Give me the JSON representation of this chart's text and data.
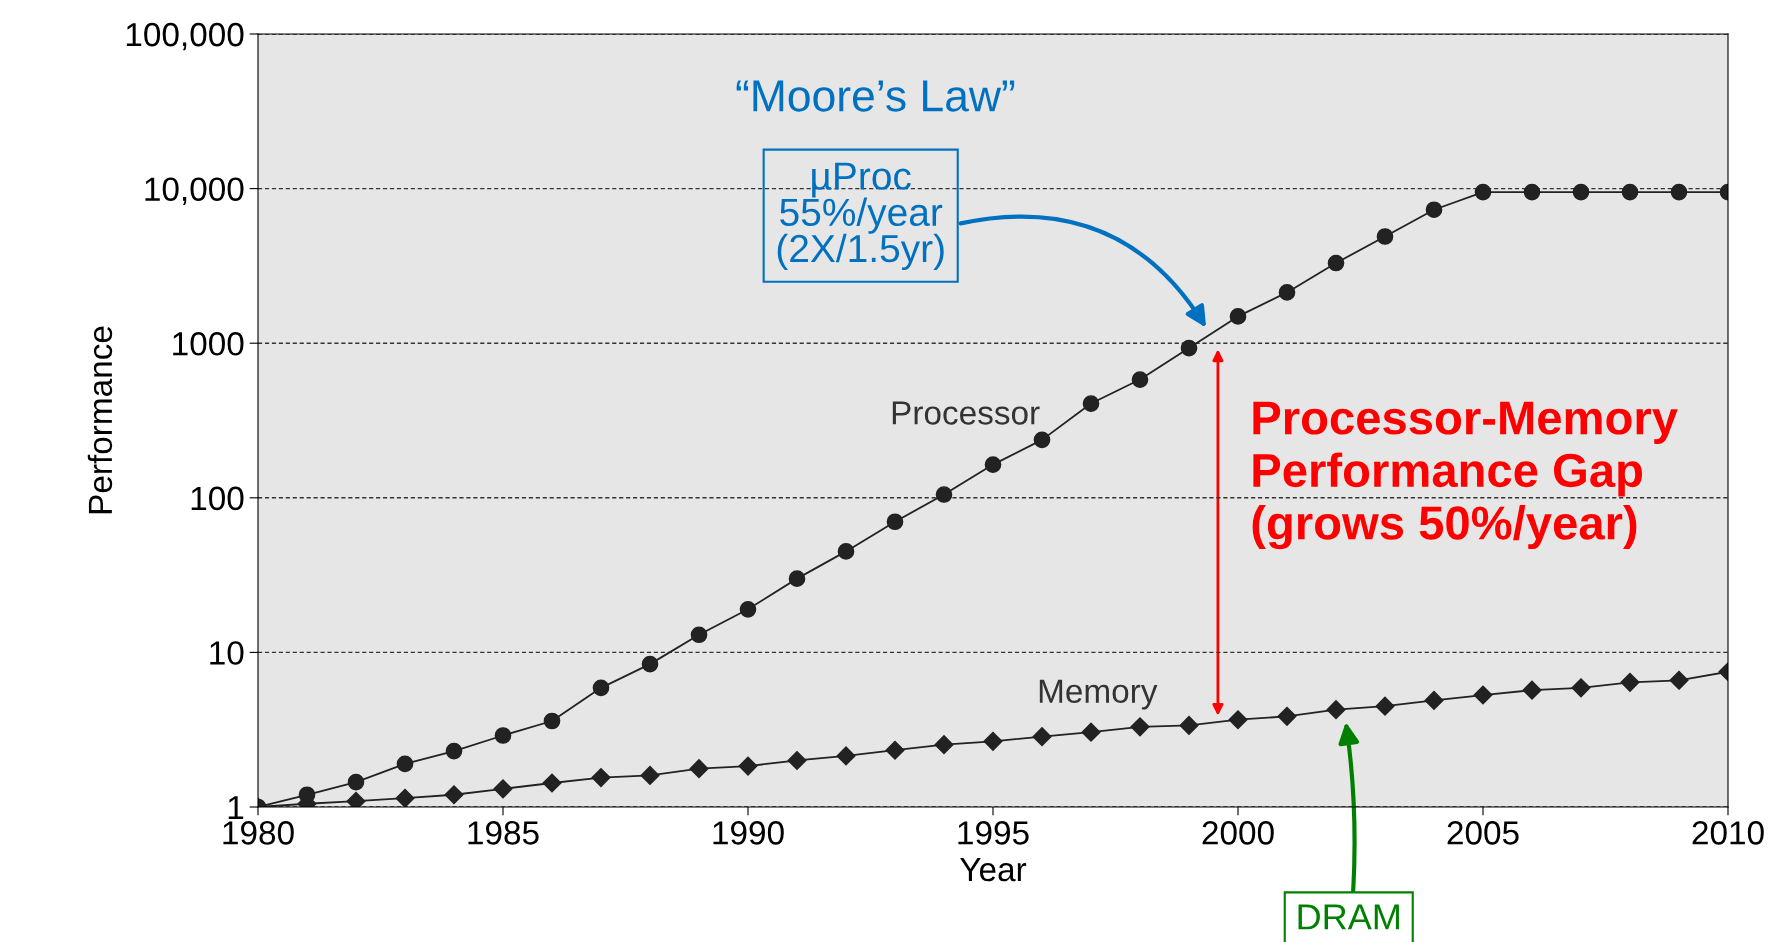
{
  "chart_data": {
    "type": "line",
    "xlabel": "Year",
    "ylabel": "Performance",
    "log": true,
    "grid": "y",
    "legend": false,
    "x": [
      1980,
      1981,
      1982,
      1983,
      1984,
      1985,
      1986,
      1987,
      1988,
      1989,
      1990,
      1991,
      1992,
      1993,
      1994,
      1995,
      1996,
      1997,
      1998,
      1999,
      2000,
      2001,
      2002,
      2003,
      2004,
      2005,
      2006,
      2007,
      2008,
      2009,
      2010
    ],
    "series": [
      {
        "name": "Processor",
        "color": "#222222",
        "marker": "circle",
        "values": [
          1,
          1.2,
          1.45,
          1.9,
          2.3,
          2.9,
          3.6,
          5.9,
          8.4,
          13,
          19,
          30,
          45,
          70,
          105,
          164,
          237,
          407,
          582,
          930,
          1490,
          2130,
          3300,
          4900,
          7300,
          9500,
          9500,
          9500,
          9500,
          9500,
          9500
        ]
      },
      {
        "name": "Memory",
        "color": "#222222",
        "marker": "diamond",
        "values": [
          1,
          1.05,
          1.09,
          1.14,
          1.2,
          1.31,
          1.43,
          1.55,
          1.6,
          1.77,
          1.84,
          2.0,
          2.14,
          2.33,
          2.53,
          2.66,
          2.85,
          3.05,
          3.3,
          3.37,
          3.67,
          3.86,
          4.26,
          4.49,
          4.89,
          5.3,
          5.7,
          5.9,
          6.4,
          6.6,
          7.5
        ]
      }
    ],
    "xlim": [
      1980,
      2010
    ],
    "xticks": [
      1980,
      1985,
      1990,
      1995,
      2000,
      2005,
      2010
    ],
    "ylim": [
      1,
      100000
    ],
    "yticks": [
      1,
      10,
      {
        "value": 100,
        "label": "100"
      },
      {
        "value": 1000,
        "label": "1000"
      },
      {
        "value": 10000,
        "label": "10,000"
      },
      {
        "value": 100000,
        "label": "100,000"
      }
    ],
    "annotations": [
      "“Moore’s Law”",
      "µProc\n55%/year\n(2X/1.5yr)",
      "Processor-Memory\nPerformance Gap\n(grows 50%/year)",
      "DRAM"
    ]
  }
}
